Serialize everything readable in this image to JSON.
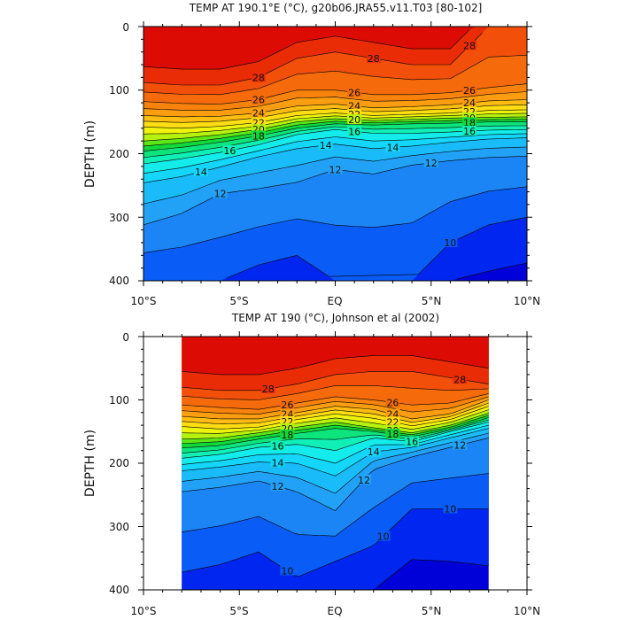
{
  "panels": [
    {
      "title": "TEMP AT 190.1°E (°C), g20b06.JRA55.v11.T03 [80-102]",
      "ylabel": "DEPTH (m)",
      "data_left_deg": -10,
      "data_right_deg": 10
    },
    {
      "title": "TEMP AT 190 (°C), Johnson et al (2002)",
      "ylabel": "DEPTH (m)",
      "data_left_deg": -8,
      "data_right_deg": 8
    }
  ],
  "x_ticks": [
    "10°S",
    "5°S",
    "EQ",
    "5°N",
    "10°N"
  ],
  "y_ticks": [
    "0",
    "100",
    "200",
    "300",
    "400"
  ],
  "chart_data": [
    {
      "type": "heatmap",
      "subtype": "filled-contour",
      "title": "TEMP AT 190.1°E (°C), g20b06.JRA55.v11.T03 [80-102]",
      "xlabel": "",
      "ylabel": "DEPTH (m)",
      "x_range_deg_lat": [
        -10,
        10
      ],
      "ylim_depth_m": [
        0,
        400
      ],
      "y_inverted": true,
      "contour_levels_degC": [
        8,
        9,
        10,
        11,
        12,
        13,
        14,
        15,
        16,
        17,
        18,
        19,
        20,
        21,
        22,
        23,
        24,
        25,
        26,
        27,
        28,
        29
      ],
      "labelled_contours_degC": [
        10,
        12,
        14,
        16,
        18,
        20,
        22,
        24,
        26,
        28
      ],
      "isotherm_depth_m": {
        "lat": [
          -10,
          -8,
          -6,
          -4,
          -2,
          0,
          2,
          4,
          6,
          8,
          10
        ],
        "28": [
          88,
          92,
          92,
          80,
          50,
          40,
          50,
          60,
          60,
          0,
          0
        ],
        "26": [
          118,
          121,
          122,
          115,
          100,
          100,
          107,
          107,
          104,
          96,
          90
        ],
        "24": [
          140,
          142,
          141,
          136,
          125,
          122,
          128,
          126,
          123,
          117,
          115
        ],
        "22": [
          158,
          160,
          157,
          151,
          140,
          136,
          140,
          138,
          136,
          132,
          131
        ],
        "20": [
          180,
          176,
          170,
          162,
          150,
          145,
          148,
          146,
          144,
          143,
          142
        ],
        "18": [
          196,
          190,
          182,
          172,
          160,
          153,
          155,
          153,
          152,
          150,
          150
        ],
        "16": [
          216,
          208,
          198,
          186,
          170,
          162,
          168,
          168,
          166,
          163,
          162
        ],
        "14": [
          246,
          236,
          221,
          205,
          192,
          185,
          192,
          188,
          182,
          177,
          175
        ],
        "12": [
          312,
          294,
          263,
          255,
          245,
          225,
          232,
          218,
          211,
          206,
          204
        ],
        "10": [
          400,
          400,
          400,
          375,
          360,
          400,
          400,
          400,
          340,
          312,
          300
        ],
        "9": [
          400,
          400,
          400,
          400,
          400,
          400,
          400,
          400,
          400,
          385,
          372
        ]
      }
    },
    {
      "type": "heatmap",
      "subtype": "filled-contour",
      "title": "TEMP AT 190 (°C), Johnson et al (2002)",
      "xlabel": "",
      "ylabel": "DEPTH (m)",
      "x_range_deg_lat": [
        -10,
        10
      ],
      "data_x_range_deg_lat": [
        -8,
        8
      ],
      "ylim_depth_m": [
        0,
        400
      ],
      "y_inverted": true,
      "contour_levels_degC": [
        9,
        10,
        11,
        12,
        13,
        14,
        15,
        16,
        17,
        18,
        19,
        20,
        21,
        22,
        23,
        24,
        25,
        26,
        27,
        28,
        29
      ],
      "labelled_contours_degC": [
        10,
        12,
        14,
        16,
        18,
        20,
        22,
        24,
        26,
        28
      ],
      "isotherm_depth_m": {
        "lat": [
          -8,
          -6,
          -4,
          -2,
          0,
          2,
          4,
          6,
          8
        ],
        "28": [
          80,
          85,
          85,
          75,
          60,
          55,
          55,
          65,
          75
        ],
        "26": [
          108,
          112,
          115,
          105,
          95,
          100,
          108,
          105,
          90
        ],
        "24": [
          126,
          130,
          130,
          120,
          110,
          115,
          130,
          122,
          100
        ],
        "22": [
          142,
          146,
          143,
          131,
          122,
          129,
          141,
          131,
          110
        ],
        "20": [
          162,
          160,
          152,
          143,
          135,
          144,
          152,
          140,
          121
        ],
        "18": [
          176,
          172,
          162,
          153,
          145,
          150,
          158,
          146,
          128
        ],
        "16": [
          192,
          186,
          175,
          170,
          180,
          160,
          166,
          150,
          135
        ],
        "14": [
          212,
          206,
          198,
          200,
          220,
          182,
          175,
          160,
          145
        ],
        "12": [
          245,
          238,
          228,
          245,
          275,
          210,
          190,
          175,
          160
        ],
        "10": [
          372,
          360,
          340,
          380,
          355,
          330,
          272,
          272,
          272
        ],
        "9": [
          400,
          400,
          400,
          400,
          400,
          400,
          352,
          355,
          362
        ]
      }
    }
  ]
}
